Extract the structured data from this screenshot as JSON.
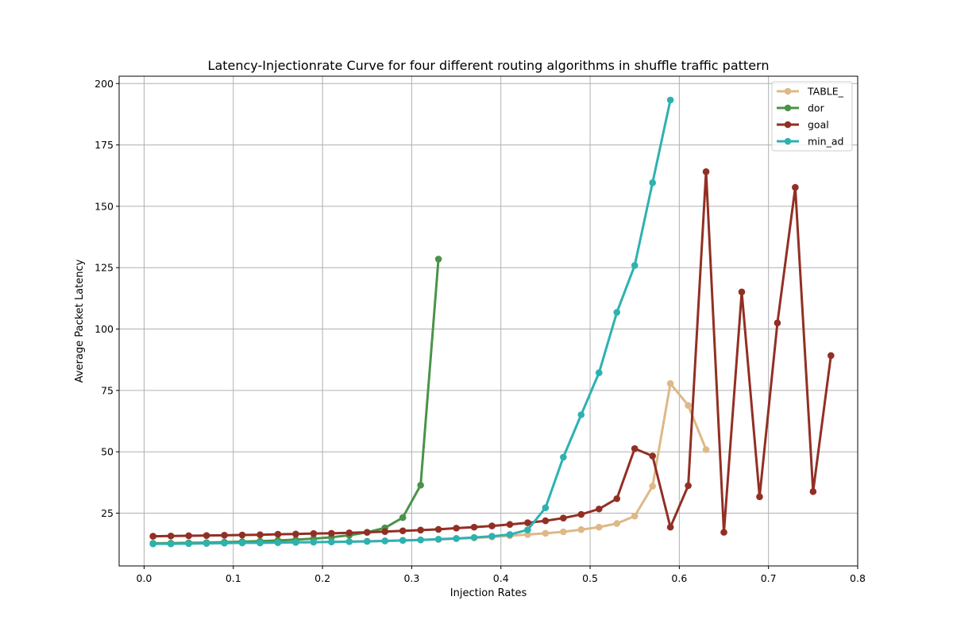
{
  "chart_data": {
    "type": "line",
    "title": "Latency-Injectionrate Curve for four different routing algorithms in shuffle traffic pattern",
    "xlabel": "Injection Rates",
    "ylabel": "Average Packet Latency",
    "xlim": [
      -0.028,
      0.8
    ],
    "ylim": [
      3.5,
      203
    ],
    "xticks": [
      0.0,
      0.1,
      0.2,
      0.3,
      0.4,
      0.5,
      0.6,
      0.7,
      0.8
    ],
    "xtick_labels": [
      "0.0",
      "0.1",
      "0.2",
      "0.3",
      "0.4",
      "0.5",
      "0.6",
      "0.7",
      "0.8"
    ],
    "yticks": [
      25,
      50,
      75,
      100,
      125,
      150,
      175,
      200
    ],
    "ytick_labels": [
      "25",
      "50",
      "75",
      "100",
      "125",
      "150",
      "175",
      "200"
    ],
    "grid": true,
    "legend_position": "upper right",
    "series": [
      {
        "name": "TABLE_",
        "color": "#deb887",
        "x": [
          0.01,
          0.03,
          0.05,
          0.07,
          0.09,
          0.11,
          0.13,
          0.15,
          0.17,
          0.19,
          0.21,
          0.23,
          0.25,
          0.27,
          0.29,
          0.31,
          0.33,
          0.35,
          0.37,
          0.39,
          0.41,
          0.43,
          0.45,
          0.47,
          0.49,
          0.51,
          0.53,
          0.55,
          0.57,
          0.59,
          0.61,
          0.63
        ],
        "y": [
          12.6,
          12.6,
          12.7,
          12.7,
          12.8,
          12.9,
          12.9,
          13.0,
          13.1,
          13.2,
          13.3,
          13.4,
          13.6,
          13.7,
          13.9,
          14.1,
          14.3,
          14.6,
          14.9,
          15.3,
          15.8,
          16.3,
          16.8,
          17.4,
          18.3,
          19.3,
          20.8,
          23.8,
          36.0,
          77.8,
          68.9,
          50.9
        ]
      },
      {
        "name": "dor",
        "color": "#4a934a",
        "x": [
          0.01,
          0.03,
          0.05,
          0.07,
          0.09,
          0.11,
          0.13,
          0.15,
          0.17,
          0.19,
          0.21,
          0.23,
          0.25,
          0.27,
          0.29,
          0.31,
          0.33
        ],
        "y": [
          12.7,
          12.8,
          12.9,
          13.0,
          13.2,
          13.4,
          13.6,
          13.9,
          14.2,
          14.6,
          15.2,
          16.0,
          17.2,
          19.0,
          23.2,
          36.4,
          128.5
        ]
      },
      {
        "name": "goal",
        "color": "#922f24",
        "x": [
          0.01,
          0.03,
          0.05,
          0.07,
          0.09,
          0.11,
          0.13,
          0.15,
          0.17,
          0.19,
          0.21,
          0.23,
          0.25,
          0.27,
          0.29,
          0.31,
          0.33,
          0.35,
          0.37,
          0.39,
          0.41,
          0.43,
          0.45,
          0.47,
          0.49,
          0.51,
          0.53,
          0.55,
          0.57,
          0.59,
          0.61,
          0.63,
          0.65,
          0.67,
          0.69,
          0.71,
          0.73,
          0.75,
          0.77
        ],
        "y": [
          15.6,
          15.7,
          15.8,
          15.9,
          16.0,
          16.1,
          16.2,
          16.4,
          16.5,
          16.7,
          16.8,
          17.0,
          17.2,
          17.5,
          17.8,
          18.1,
          18.4,
          18.9,
          19.3,
          19.8,
          20.4,
          21.1,
          21.9,
          23.0,
          24.5,
          26.7,
          30.9,
          51.3,
          48.3,
          19.3,
          36.2,
          164.1,
          17.2,
          115.1,
          31.7,
          102.5,
          157.7,
          33.8,
          89.2
        ]
      },
      {
        "name": "min_ad",
        "color": "#2eb1b1",
        "x": [
          0.01,
          0.03,
          0.05,
          0.07,
          0.09,
          0.11,
          0.13,
          0.15,
          0.17,
          0.19,
          0.21,
          0.23,
          0.25,
          0.27,
          0.29,
          0.31,
          0.33,
          0.35,
          0.37,
          0.39,
          0.41,
          0.43,
          0.45,
          0.47,
          0.49,
          0.51,
          0.53,
          0.55,
          0.57,
          0.59
        ],
        "y": [
          12.5,
          12.5,
          12.6,
          12.7,
          12.8,
          12.9,
          12.9,
          13.0,
          13.1,
          13.2,
          13.3,
          13.4,
          13.5,
          13.7,
          13.9,
          14.1,
          14.4,
          14.7,
          15.1,
          15.6,
          16.3,
          18.2,
          27.2,
          47.8,
          65.1,
          82.2,
          106.8,
          125.9,
          159.6,
          193.3
        ]
      }
    ]
  }
}
